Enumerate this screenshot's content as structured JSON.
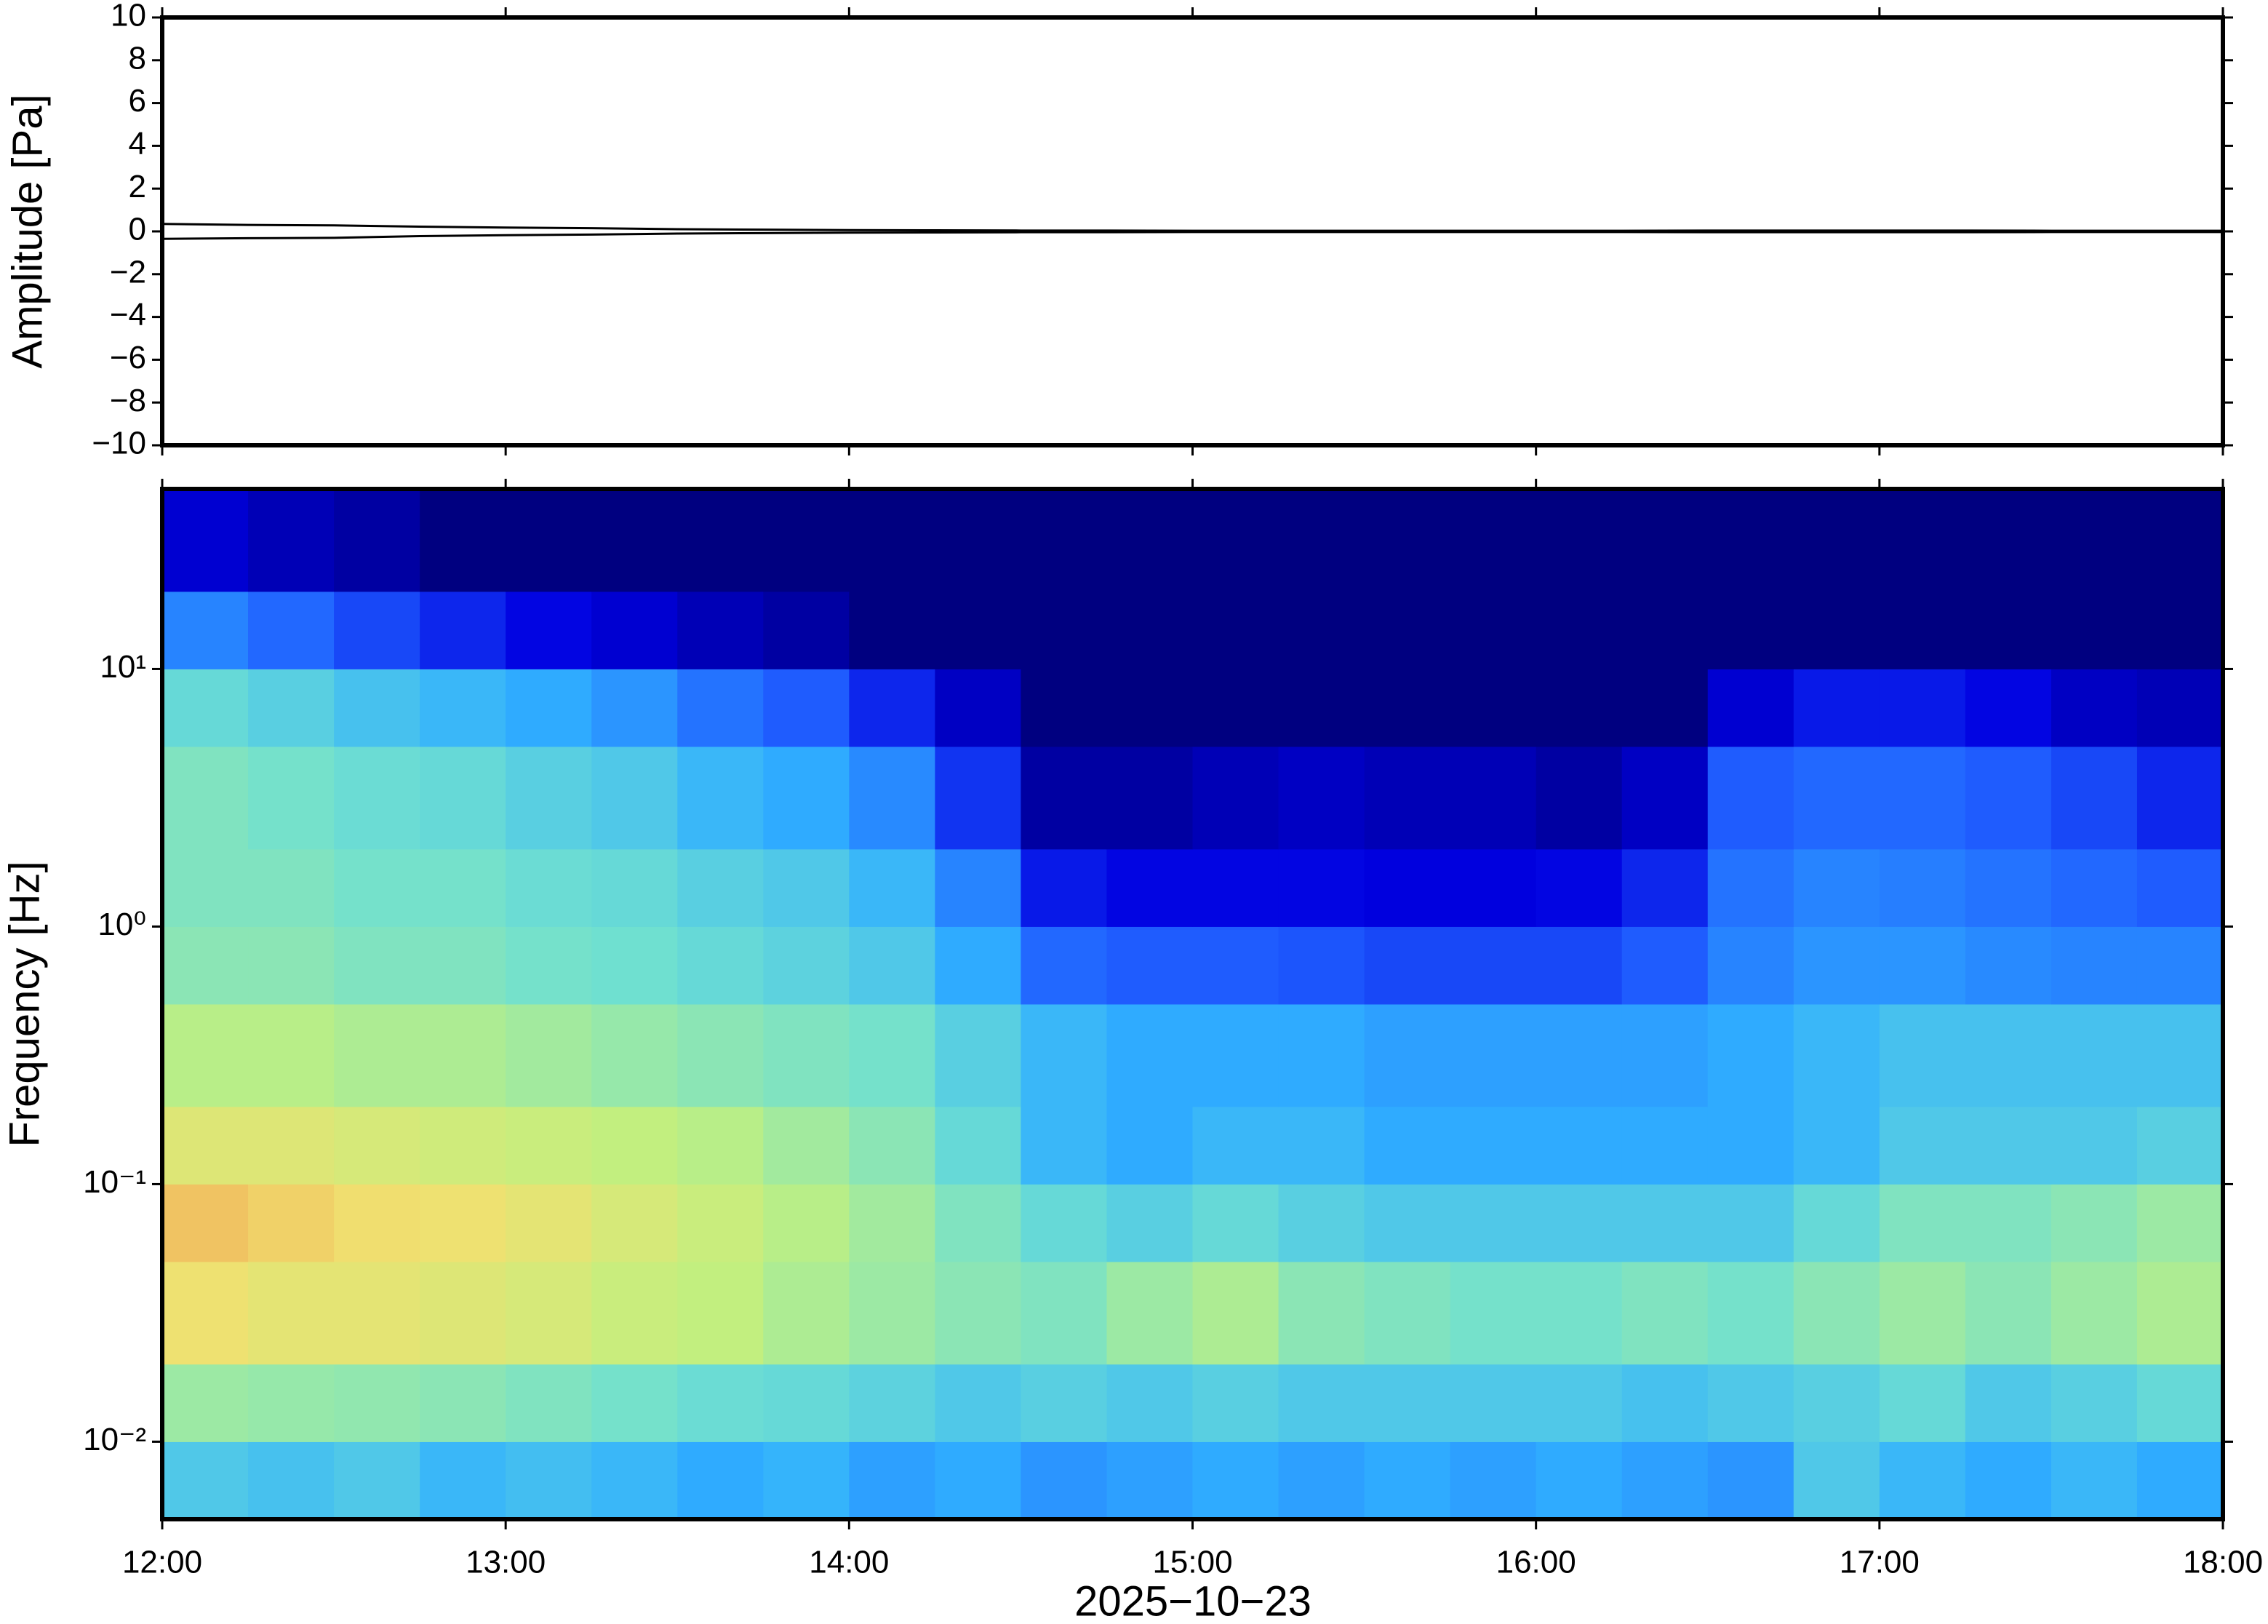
{
  "chart_data": [
    {
      "type": "line",
      "ylabel": "Amplitude [Pa]",
      "xlim": [
        12,
        18
      ],
      "xticks": [
        12,
        13,
        14,
        15,
        16,
        17,
        18
      ],
      "ylim": [
        -10,
        10
      ],
      "yticks": [
        {
          "value": -10,
          "label": "−10"
        },
        {
          "value": -8,
          "label": "−8"
        },
        {
          "value": -6,
          "label": "−6"
        },
        {
          "value": -4,
          "label": "−4"
        },
        {
          "value": -2,
          "label": "−2"
        },
        0,
        2,
        4,
        6,
        8,
        10
      ],
      "x": [
        12,
        12.25,
        12.5,
        12.75,
        13,
        13.25,
        13.5,
        13.75,
        14,
        14.25,
        14.5,
        14.75,
        15,
        15.25,
        15.5,
        15.75,
        16,
        16.25,
        16.5,
        16.75,
        17,
        17.25,
        17.5,
        17.75,
        18
      ],
      "series": [
        {
          "color": "#000000",
          "values": [
            0.35,
            0.3,
            0.28,
            0.22,
            0.18,
            0.15,
            0.1,
            0.08,
            0.06,
            0.05,
            0.04,
            0.04,
            0.03,
            0.03,
            0.03,
            0.03,
            0.03,
            0.03,
            0.04,
            0.04,
            0.04,
            0.04,
            0.03,
            0.03,
            0.03
          ]
        },
        {
          "color": "#000000",
          "values": [
            -0.35,
            -0.32,
            -0.3,
            -0.22,
            -0.18,
            -0.15,
            -0.1,
            -0.08,
            -0.06,
            -0.05,
            -0.04,
            -0.04,
            -0.03,
            -0.03,
            -0.03,
            -0.03,
            -0.03,
            -0.03,
            -0.04,
            -0.04,
            -0.04,
            -0.04,
            -0.03,
            -0.03,
            -0.03
          ]
        }
      ]
    },
    {
      "type": "heatmap",
      "ylabel": "Frequency [Hz]",
      "xlabel": "2025−10−23",
      "xlim": [
        12,
        18
      ],
      "xticks": [
        {
          "value": 12,
          "label": "12:00"
        },
        {
          "value": 13,
          "label": "13:00"
        },
        {
          "value": 14,
          "label": "14:00"
        },
        {
          "value": 15,
          "label": "15:00"
        },
        {
          "value": 16,
          "label": "16:00"
        },
        {
          "value": 17,
          "label": "17:00"
        },
        {
          "value": 18,
          "label": "18:00"
        }
      ],
      "ylim": [
        0.005,
        50
      ],
      "log_y": true,
      "yticks": [
        {
          "value": 0.01,
          "label": "10⁻²"
        },
        {
          "value": 0.1,
          "label": "10⁻¹"
        },
        {
          "value": 1,
          "label": "10⁰"
        },
        {
          "value": 10,
          "label": "10¹"
        }
      ],
      "x_edges": [
        12,
        12.25,
        12.5,
        12.75,
        13,
        13.25,
        13.5,
        13.75,
        14,
        14.25,
        14.5,
        14.75,
        15,
        15.25,
        15.5,
        15.75,
        16,
        16.25,
        16.5,
        16.75,
        17,
        17.25,
        17.5,
        17.75,
        18
      ],
      "y_edges": [
        0.005,
        0.01,
        0.02,
        0.05,
        0.1,
        0.2,
        0.5,
        1,
        2,
        5,
        10,
        20,
        50
      ],
      "zlim": [
        0,
        1
      ],
      "colormap": [
        "#000080",
        "#0000e0",
        "#2060ff",
        "#30b0ff",
        "#70e0d0",
        "#c0f080",
        "#f0e070",
        "#f08040"
      ],
      "z": [
        [
          0.5,
          0.48,
          0.5,
          0.45,
          0.47,
          0.45,
          0.42,
          0.44,
          0.4,
          0.42,
          0.38,
          0.4,
          0.42,
          0.4,
          0.42,
          0.4,
          0.42,
          0.4,
          0.38,
          0.5,
          0.45,
          0.42,
          0.45,
          0.42
        ],
        [
          0.65,
          0.64,
          0.63,
          0.62,
          0.6,
          0.58,
          0.56,
          0.55,
          0.53,
          0.5,
          0.52,
          0.5,
          0.52,
          0.5,
          0.5,
          0.5,
          0.5,
          0.48,
          0.5,
          0.52,
          0.55,
          0.5,
          0.52,
          0.55
        ],
        [
          0.85,
          0.82,
          0.82,
          0.8,
          0.78,
          0.74,
          0.72,
          0.68,
          0.65,
          0.62,
          0.6,
          0.65,
          0.68,
          0.62,
          0.6,
          0.58,
          0.58,
          0.6,
          0.58,
          0.62,
          0.65,
          0.62,
          0.65,
          0.68
        ],
        [
          0.9,
          0.88,
          0.86,
          0.85,
          0.82,
          0.78,
          0.74,
          0.7,
          0.66,
          0.6,
          0.55,
          0.52,
          0.55,
          0.52,
          0.5,
          0.5,
          0.5,
          0.5,
          0.5,
          0.55,
          0.6,
          0.6,
          0.62,
          0.65
        ],
        [
          0.8,
          0.8,
          0.78,
          0.76,
          0.74,
          0.72,
          0.7,
          0.66,
          0.62,
          0.55,
          0.45,
          0.42,
          0.45,
          0.45,
          0.42,
          0.42,
          0.42,
          0.42,
          0.42,
          0.45,
          0.5,
          0.5,
          0.5,
          0.52
        ],
        [
          0.7,
          0.7,
          0.68,
          0.68,
          0.66,
          0.64,
          0.62,
          0.6,
          0.58,
          0.52,
          0.45,
          0.42,
          0.42,
          0.42,
          0.4,
          0.4,
          0.4,
          0.4,
          0.42,
          0.45,
          0.48,
          0.48,
          0.48,
          0.48
        ],
        [
          0.62,
          0.62,
          0.6,
          0.6,
          0.58,
          0.57,
          0.55,
          0.53,
          0.5,
          0.42,
          0.3,
          0.28,
          0.28,
          0.27,
          0.25,
          0.25,
          0.25,
          0.28,
          0.35,
          0.38,
          0.38,
          0.36,
          0.35,
          0.35
        ],
        [
          0.6,
          0.6,
          0.58,
          0.58,
          0.56,
          0.55,
          0.52,
          0.5,
          0.45,
          0.35,
          0.18,
          0.15,
          0.15,
          0.15,
          0.14,
          0.14,
          0.15,
          0.2,
          0.32,
          0.35,
          0.34,
          0.32,
          0.3,
          0.28
        ],
        [
          0.6,
          0.58,
          0.56,
          0.55,
          0.52,
          0.5,
          0.45,
          0.42,
          0.36,
          0.22,
          0.05,
          0.05,
          0.08,
          0.1,
          0.08,
          0.08,
          0.05,
          0.1,
          0.28,
          0.3,
          0.3,
          0.28,
          0.25,
          0.2
        ],
        [
          0.55,
          0.52,
          0.48,
          0.45,
          0.42,
          0.38,
          0.32,
          0.28,
          0.2,
          0.1,
          0,
          0,
          0,
          0,
          0,
          0,
          0,
          0,
          0.12,
          0.18,
          0.18,
          0.15,
          0.1,
          0.08
        ],
        [
          0.35,
          0.3,
          0.25,
          0.2,
          0.15,
          0.12,
          0.08,
          0.05,
          0,
          0,
          0,
          0,
          0,
          0,
          0,
          0,
          0,
          0,
          0,
          0,
          0,
          0,
          0,
          0
        ],
        [
          0.12,
          0.08,
          0.05,
          0,
          0,
          0,
          0,
          0,
          0,
          0,
          0,
          0,
          0,
          0,
          0,
          0,
          0,
          0,
          0,
          0,
          0,
          0,
          0,
          0
        ]
      ]
    }
  ]
}
